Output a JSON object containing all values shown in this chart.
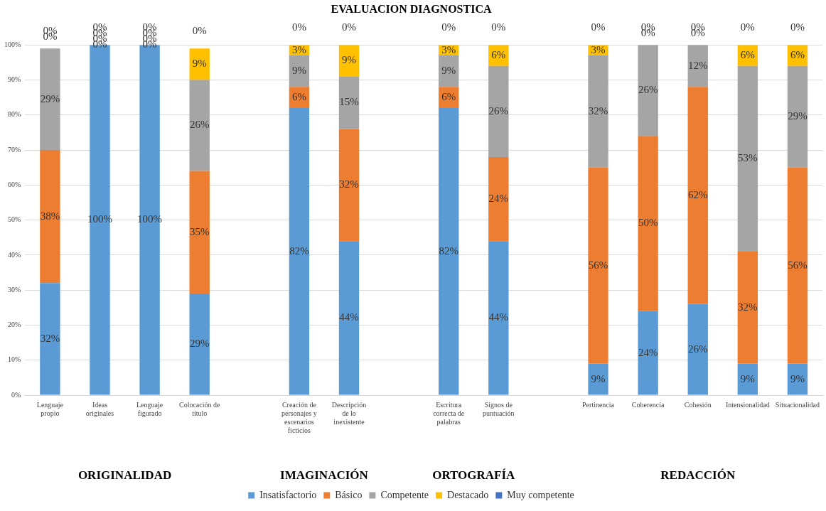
{
  "chart_data": {
    "type": "bar",
    "stacked": true,
    "title": "EVALUACION DIAGNOSTICA",
    "categories": [
      "Lenguaje propio",
      "Ideas originales",
      "Lenguaje figurado",
      "Colocación de título",
      null,
      "Creación de personajes y escenarios ficticios",
      "Descripción de lo inexistente",
      null,
      "Escritura correcta de palabras",
      "Signos de puntuación",
      null,
      "Pertinencia",
      "Coherencia",
      "Cohesión",
      "Intensionalidad",
      "Situacionalidad"
    ],
    "series": [
      {
        "name": "Insatisfactorio",
        "color": "#5b9bd5",
        "values": [
          32,
          100,
          100,
          29,
          null,
          82,
          44,
          null,
          82,
          44,
          null,
          9,
          24,
          26,
          9,
          9
        ],
        "value_labels": [
          "32%",
          "100%",
          "100%",
          "29%",
          null,
          "82%",
          "44%",
          null,
          "82%",
          "44%",
          null,
          "9%",
          "24%",
          "26%",
          "9%",
          "9%"
        ]
      },
      {
        "name": "Básico",
        "color": "#ed7d31",
        "values": [
          38,
          0,
          0,
          35,
          null,
          6,
          32,
          null,
          6,
          24,
          null,
          56,
          50,
          62,
          32,
          56
        ],
        "value_labels": [
          "38%",
          "0%",
          "0%",
          "35%",
          null,
          "6%",
          "32%",
          null,
          "6%",
          "24%",
          null,
          "56%",
          "50%",
          "62%",
          "32%",
          "56%"
        ]
      },
      {
        "name": "Competente",
        "color": "#a5a5a5",
        "values": [
          29,
          0,
          0,
          26,
          null,
          9,
          15,
          null,
          9,
          26,
          null,
          32,
          26,
          12,
          53,
          29
        ],
        "value_labels": [
          "29%",
          "0%",
          "0%",
          "26%",
          null,
          "9%",
          "15%",
          null,
          "9%",
          "26%",
          null,
          "32%",
          "26%",
          "12%",
          "53%",
          "29%"
        ]
      },
      {
        "name": "Destacado",
        "color": "#ffc000",
        "values": [
          0,
          0,
          0,
          9,
          null,
          3,
          9,
          null,
          3,
          6,
          null,
          3,
          0,
          0,
          6,
          6
        ],
        "value_labels": [
          "0%",
          "0%",
          "0%",
          "9%",
          null,
          "3%",
          "9%",
          null,
          "3%",
          "6%",
          null,
          "3%",
          "0%",
          "0%",
          "6%",
          "6%"
        ]
      },
      {
        "name": "Muy competente",
        "color": "#4472c4",
        "values": [
          0,
          0,
          0,
          0,
          null,
          0,
          0,
          null,
          0,
          0,
          null,
          0,
          0,
          0,
          0,
          0
        ],
        "value_labels": [
          "0%",
          "0%",
          "0%",
          "0%",
          null,
          "0%",
          "0%",
          null,
          "0%",
          "0%",
          null,
          "0%",
          "0%",
          "0%",
          "0%",
          "0%"
        ]
      }
    ],
    "ylim": [
      0,
      100
    ],
    "yticks": [
      {
        "value": 0,
        "label": "0%"
      },
      {
        "value": 10,
        "label": "10%"
      },
      {
        "value": 20,
        "label": "20%"
      },
      {
        "value": 30,
        "label": "30%"
      },
      {
        "value": 40,
        "label": "40%"
      },
      {
        "value": 50,
        "label": "50%"
      },
      {
        "value": 60,
        "label": "60%"
      },
      {
        "value": 70,
        "label": "70%"
      },
      {
        "value": 80,
        "label": "80%"
      },
      {
        "value": 90,
        "label": "90%"
      },
      {
        "value": 100,
        "label": "100%"
      }
    ],
    "grid": "y",
    "legend": "bottom",
    "annotations": [
      "ORIGINALIDAD",
      "IMAGINACIÓN",
      "ORTOGRAFÍA",
      "REDACCIÓN"
    ]
  }
}
